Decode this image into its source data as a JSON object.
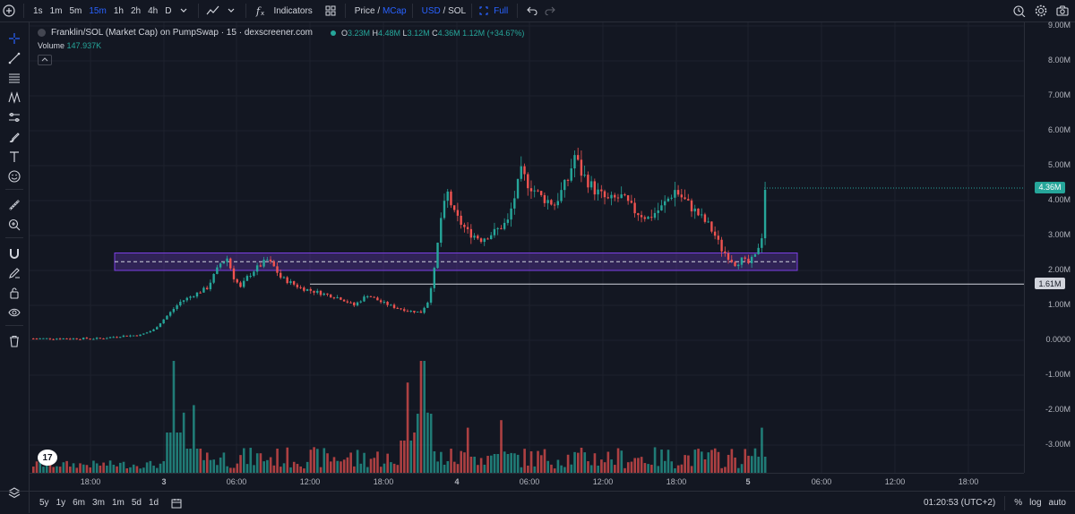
{
  "toolbar": {
    "timeframes": [
      "1s",
      "1m",
      "5m",
      "15m",
      "1h",
      "2h",
      "4h",
      "D"
    ],
    "active_timeframe": "15m",
    "indicators_label": "Indicators",
    "price_label": "Price",
    "slash1": "/",
    "mcap_label": "MCap",
    "usd_label": "USD",
    "slash2": "/",
    "sol_label": "SOL",
    "full_label": "Full"
  },
  "legend": {
    "title": "Franklin/SOL (Market Cap) on PumpSwap · 15 · dexscreener.com",
    "o_label": "O",
    "o_value": "3.23M",
    "h_label": "H",
    "h_value": "4.48M",
    "l_label": "L",
    "l_value": "3.12M",
    "c_label": "C",
    "c_value": "4.36M",
    "change": "1.12M (+34.67%)",
    "volume_label": "Volume",
    "volume_value": "147.937K"
  },
  "price_axis": {
    "labels": [
      "9.00M",
      "8.00M",
      "7.00M",
      "6.00M",
      "5.00M",
      "4.00M",
      "3.00M",
      "2.00M",
      "1.00M",
      "0.0000",
      "-1.00M",
      "-2.00M",
      "-3.00M"
    ],
    "current_price": "4.36M",
    "line_price": "1.61M"
  },
  "time_axis": {
    "labels": [
      "18:00",
      "3",
      "06:00",
      "12:00",
      "18:00",
      "4",
      "06:00",
      "12:00",
      "18:00",
      "5",
      "06:00",
      "12:00",
      "18:00"
    ]
  },
  "bottom": {
    "ranges": [
      "5y",
      "1y",
      "6m",
      "3m",
      "1m",
      "5d",
      "1d"
    ],
    "clock": "01:20:53 (UTC+2)",
    "percent": "%",
    "log": "log",
    "auto": "auto"
  },
  "colors": {
    "up": "#26a69a",
    "down": "#ef5350",
    "zone": "#7b3fe4",
    "background": "#131722"
  },
  "chart_data": {
    "type": "candlestick",
    "ylim": [
      -3.5,
      9.0
    ],
    "y_unit": "M",
    "zone": {
      "low": 2.0,
      "high": 2.5,
      "mid": 2.25
    },
    "hline": 1.61,
    "current": 4.36,
    "price_path": [
      [
        0,
        0.05
      ],
      [
        10,
        0.05
      ],
      [
        20,
        0.05
      ],
      [
        26,
        0.12
      ],
      [
        32,
        0.15
      ],
      [
        36,
        0.3
      ],
      [
        40,
        0.7
      ],
      [
        44,
        1.1
      ],
      [
        48,
        1.3
      ],
      [
        52,
        1.5
      ],
      [
        56,
        2.2
      ],
      [
        58,
        2.35
      ],
      [
        60,
        1.8
      ],
      [
        62,
        1.5
      ],
      [
        64,
        1.8
      ],
      [
        66,
        2.0
      ],
      [
        70,
        2.3
      ],
      [
        72,
        2.1
      ],
      [
        74,
        1.8
      ],
      [
        80,
        1.5
      ],
      [
        88,
        1.3
      ],
      [
        92,
        1.2
      ],
      [
        96,
        1.0
      ],
      [
        100,
        1.3
      ],
      [
        104,
        1.1
      ],
      [
        108,
        0.95
      ],
      [
        112,
        0.85
      ],
      [
        116,
        0.8
      ],
      [
        118,
        1.1
      ],
      [
        120,
        2.0
      ],
      [
        122,
        3.5
      ],
      [
        124,
        4.2
      ],
      [
        126,
        3.6
      ],
      [
        130,
        3.1
      ],
      [
        134,
        2.9
      ],
      [
        138,
        3.1
      ],
      [
        142,
        3.4
      ],
      [
        146,
        4.8
      ],
      [
        148,
        4.5
      ],
      [
        152,
        4.1
      ],
      [
        156,
        3.9
      ],
      [
        160,
        4.6
      ],
      [
        162,
        5.3
      ],
      [
        164,
        4.8
      ],
      [
        168,
        4.3
      ],
      [
        172,
        4.0
      ],
      [
        176,
        4.1
      ],
      [
        180,
        3.7
      ],
      [
        184,
        3.5
      ],
      [
        188,
        3.8
      ],
      [
        192,
        4.3
      ],
      [
        194,
        4.1
      ],
      [
        198,
        3.7
      ],
      [
        202,
        3.3
      ],
      [
        204,
        3.0
      ],
      [
        206,
        2.6
      ],
      [
        208,
        2.4
      ],
      [
        210,
        2.2
      ],
      [
        212,
        2.3
      ],
      [
        214,
        2.2
      ],
      [
        216,
        2.4
      ],
      [
        218,
        3.0
      ],
      [
        219,
        4.36
      ]
    ],
    "volume_peaks": [
      [
        42,
        1.5
      ],
      [
        45,
        0.8
      ],
      [
        48,
        0.9
      ],
      [
        112,
        1.2
      ],
      [
        116,
        1.5
      ],
      [
        117,
        2.2
      ],
      [
        118,
        0.8
      ],
      [
        130,
        0.6
      ],
      [
        140,
        0.7
      ],
      [
        218,
        0.6
      ]
    ]
  }
}
